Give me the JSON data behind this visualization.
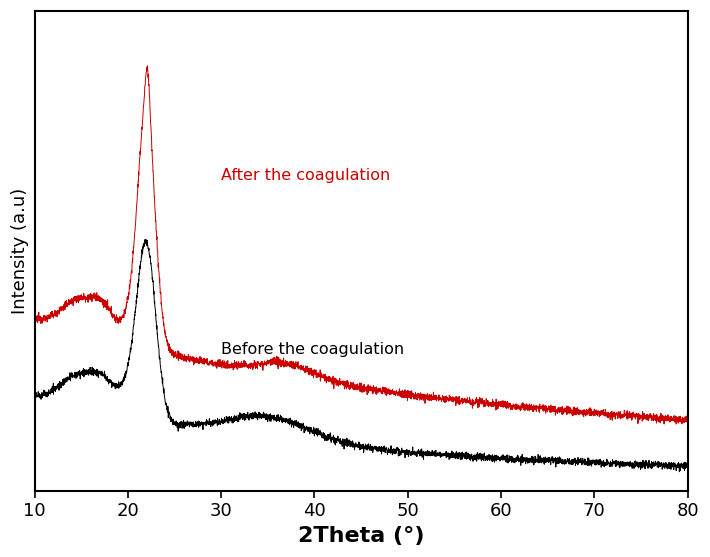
{
  "title": "",
  "xlabel": "2Theta (°)",
  "ylabel": "Intensity (a.u)",
  "xlim": [
    10,
    80
  ],
  "ylim": [
    0.0,
    1.05
  ],
  "xlabel_fontsize": 16,
  "ylabel_fontsize": 13,
  "xtick_fontsize": 13,
  "line_color_before": "#000000",
  "line_color_after": "#cc0000",
  "label_before": "Before the coagulation",
  "label_after": "After the coagulation",
  "label_before_color": "#000000",
  "label_after_color": "#cc0000",
  "background_color": "#ffffff",
  "linewidth": 0.7,
  "xticks": [
    10,
    20,
    30,
    40,
    50,
    60,
    70,
    80
  ]
}
